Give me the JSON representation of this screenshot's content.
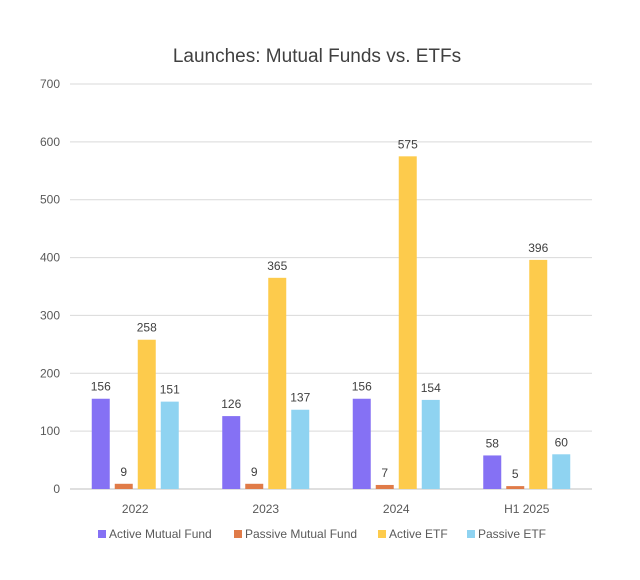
{
  "chart_data": {
    "type": "bar",
    "title": "Launches: Mutual Funds vs. ETFs",
    "categories": [
      "2022",
      "2023",
      "2024",
      "H1 2025"
    ],
    "series": [
      {
        "name": "Active Mutual Fund",
        "color": "#8571f4",
        "values": [
          156,
          126,
          156,
          58
        ]
      },
      {
        "name": "Passive Mutual Fund",
        "color": "#e07b48",
        "values": [
          9,
          9,
          7,
          5
        ]
      },
      {
        "name": "Active ETF",
        "color": "#fdcb4c",
        "values": [
          258,
          365,
          575,
          396
        ]
      },
      {
        "name": "Passive ETF",
        "color": "#8fd3f1",
        "values": [
          151,
          137,
          154,
          60
        ]
      }
    ],
    "ylim": [
      0,
      700
    ],
    "yticks": [
      0,
      100,
      200,
      300,
      400,
      500,
      600,
      700
    ],
    "grid": true,
    "legend": "bottom",
    "data_labels": true
  }
}
